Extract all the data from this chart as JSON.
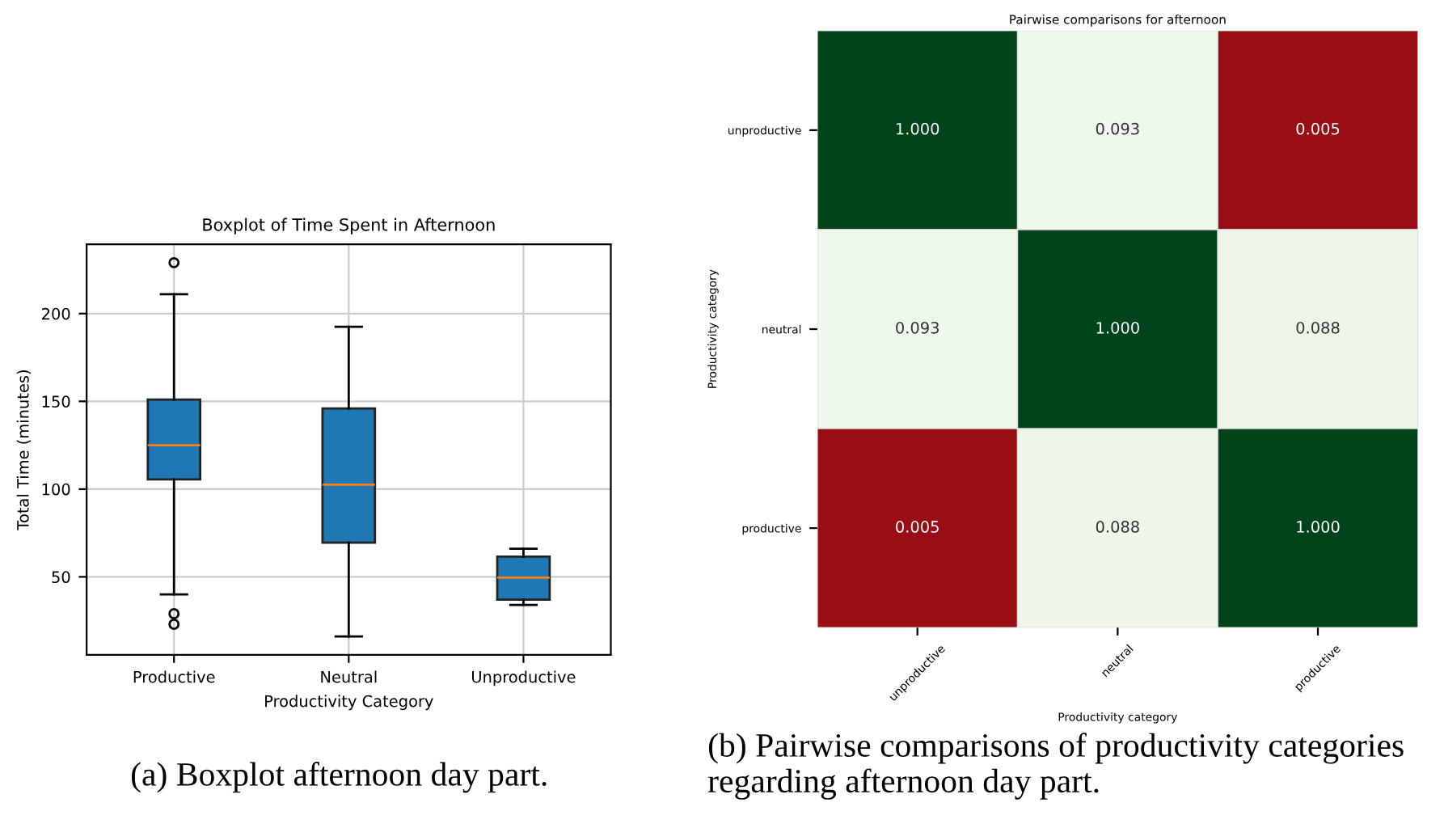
{
  "chart_data": [
    {
      "type": "box",
      "title": "Boxplot of Time Spent in Afternoon",
      "xlabel": "Productivity Category",
      "ylabel": "Total Time (minutes)",
      "categories": [
        "Productive",
        "Neutral",
        "Unproductive"
      ],
      "boxes": [
        {
          "low": 40,
          "q1": 105.5,
          "median": 125,
          "q3": 151,
          "high": 211,
          "outliers": [
            229,
            29,
            23
          ]
        },
        {
          "low": 16,
          "q1": 69.5,
          "median": 102.5,
          "q3": 146,
          "high": 192.5
        },
        {
          "low": 34,
          "q1": 37,
          "median": 49.5,
          "q3": 61.5,
          "high": 66
        }
      ],
      "color": "#1f77b4",
      "ylim": [
        5.5,
        239.5
      ],
      "yticks": [
        50,
        100,
        150,
        200
      ],
      "grid": true,
      "annotations": [
        "(a) Boxplot afternoon day part."
      ]
    },
    {
      "type": "heatmap",
      "title": "Pairwise comparisons for afternoon",
      "xlabel": "Productivity category",
      "ylabel": "Productivity category",
      "categories": [
        "unproductive",
        "neutral",
        "productive"
      ],
      "y_categories": [
        "unproductive",
        "neutral",
        "productive"
      ],
      "cells": [
        [
          1.0,
          0.093,
          0.005
        ],
        [
          0.093,
          1.0,
          0.088
        ],
        [
          0.005,
          0.088,
          1.0
        ]
      ],
      "cell_labels": [
        [
          "1.000",
          "0.093",
          "0.005"
        ],
        [
          "0.093",
          "1.000",
          "0.088"
        ],
        [
          "0.005",
          "0.088",
          "1.000"
        ]
      ],
      "colors": [
        "#990d15",
        "#eff8ec",
        "#eff8ec",
        "#00441b"
      ],
      "annotations": [
        "(b) Pairwise comparisons of productivity categories regarding afternoon day part."
      ]
    }
  ]
}
